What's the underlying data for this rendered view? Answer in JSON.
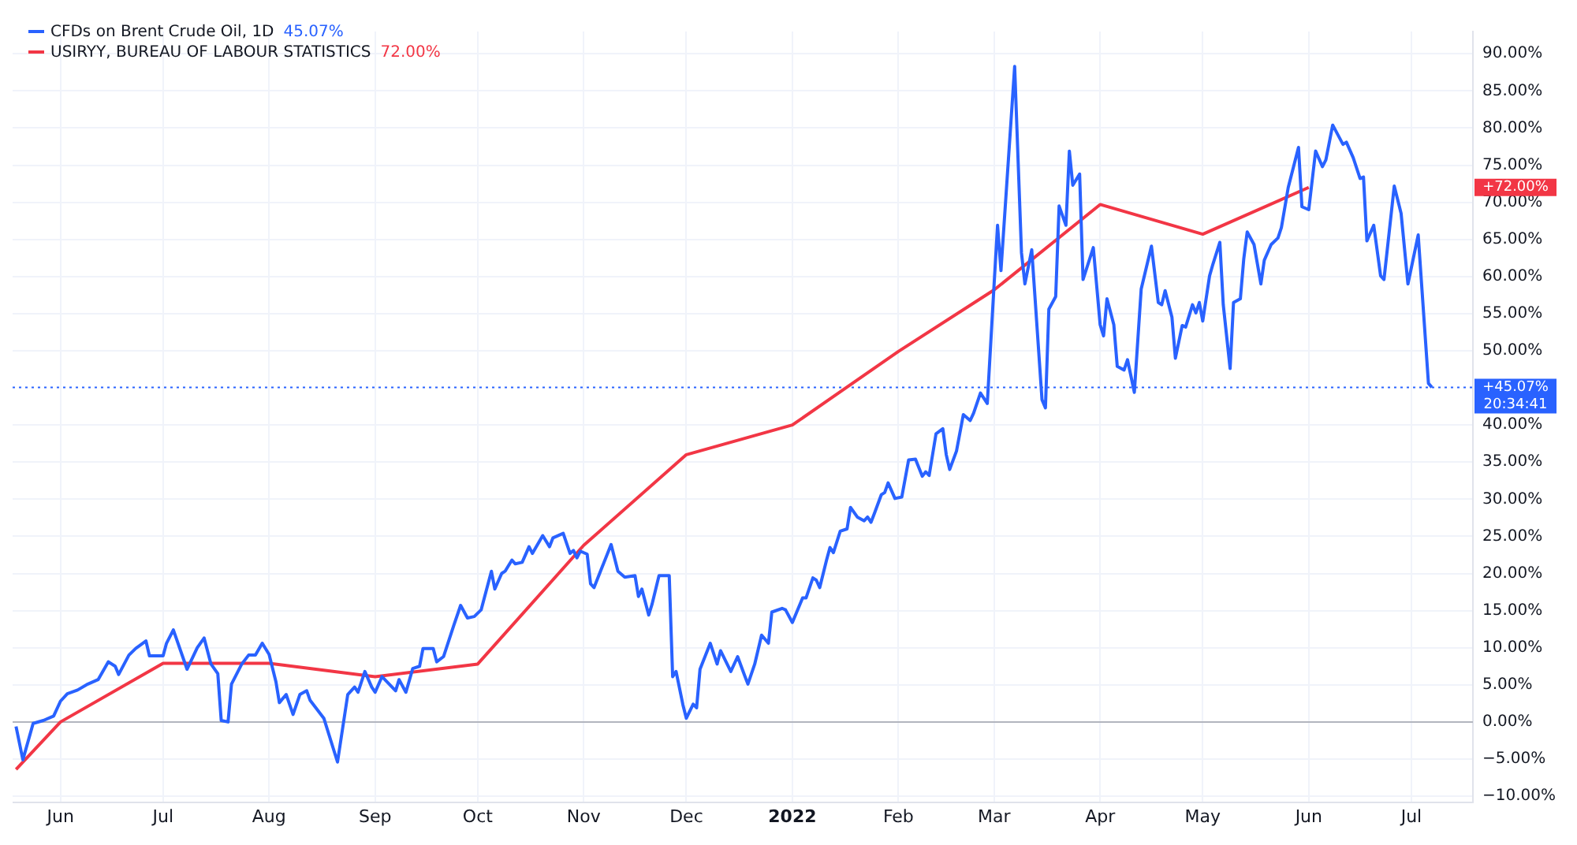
{
  "chart_data": {
    "type": "line",
    "legend": "top left",
    "grid": true,
    "marker": "none",
    "xlim": [
      "2021-05-18",
      "2022-07-19"
    ],
    "xticks": [
      {
        "value": "2021-06-01",
        "label": "Jun"
      },
      {
        "value": "2021-07-01",
        "label": "Jul"
      },
      {
        "value": "2021-08-01",
        "label": "Aug"
      },
      {
        "value": "2021-09-01",
        "label": "Sep"
      },
      {
        "value": "2021-10-01",
        "label": "Oct"
      },
      {
        "value": "2021-11-01",
        "label": "Nov"
      },
      {
        "value": "2021-12-01",
        "label": "Dec"
      },
      {
        "value": "2022-01-01",
        "label": "2022"
      },
      {
        "value": "2022-02-01",
        "label": "Feb"
      },
      {
        "value": "2022-03-01",
        "label": "Mar"
      },
      {
        "value": "2022-04-01",
        "label": "Apr"
      },
      {
        "value": "2022-05-01",
        "label": "May"
      },
      {
        "value": "2022-06-01",
        "label": "Jun"
      },
      {
        "value": "2022-07-01",
        "label": "Jul"
      }
    ],
    "ylim": [
      -10.8,
      93
    ],
    "yticks": [
      {
        "value": -10,
        "label": "−10.00%"
      },
      {
        "value": -5,
        "label": "−5.00%"
      },
      {
        "value": 0,
        "label": "0.00%"
      },
      {
        "value": 5,
        "label": "5.00%"
      },
      {
        "value": 10,
        "label": "10.00%"
      },
      {
        "value": 15,
        "label": "15.00%"
      },
      {
        "value": 20,
        "label": "20.00%"
      },
      {
        "value": 25,
        "label": "25.00%"
      },
      {
        "value": 30,
        "label": "30.00%"
      },
      {
        "value": 35,
        "label": "35.00%"
      },
      {
        "value": 40,
        "label": "40.00%"
      },
      {
        "value": 45,
        "label": null
      },
      {
        "value": 50,
        "label": "50.00%"
      },
      {
        "value": 55,
        "label": "55.00%"
      },
      {
        "value": 60,
        "label": "60.00%"
      },
      {
        "value": 65,
        "label": "65.00%"
      },
      {
        "value": 70,
        "label": "70.00%"
      },
      {
        "value": 75,
        "label": "75.00%"
      },
      {
        "value": 80,
        "label": "80.00%"
      },
      {
        "value": 85,
        "label": "85.00%"
      },
      {
        "value": 90,
        "label": "90.00%"
      }
    ],
    "ref_lines": [
      {
        "axis": "y",
        "value": 0,
        "color": "#b2b5be",
        "line_style": "solid"
      },
      {
        "axis": "y",
        "value": 45.07,
        "color": "#2962ff",
        "line_style": "dotted"
      }
    ],
    "annotations": [
      "+45.07%",
      "+72.00%",
      "45.07%",
      "72.00%",
      "20:34:41"
    ],
    "series": [
      {
        "name": "CFDs on Brent Crude Oil, 1D",
        "color": "#2962ff",
        "x": [
          "2021-05-19",
          "2021-05-21",
          "2021-05-24",
          "2021-05-27",
          "2021-05-30",
          "2021-06-01",
          "2021-06-03",
          "2021-06-06",
          "2021-06-09",
          "2021-06-12",
          "2021-06-15",
          "2021-06-17",
          "2021-06-18",
          "2021-06-21",
          "2021-06-23",
          "2021-06-26",
          "2021-06-27",
          "2021-07-01",
          "2021-07-02",
          "2021-07-04",
          "2021-07-08",
          "2021-07-11",
          "2021-07-13",
          "2021-07-15",
          "2021-07-17",
          "2021-07-18",
          "2021-07-20",
          "2021-07-21",
          "2021-07-24",
          "2021-07-26",
          "2021-07-28",
          "2021-07-30",
          "2021-08-01",
          "2021-08-03",
          "2021-08-04",
          "2021-08-06",
          "2021-08-08",
          "2021-08-10",
          "2021-08-12",
          "2021-08-13",
          "2021-08-17",
          "2021-08-21",
          "2021-08-24",
          "2021-08-26",
          "2021-08-27",
          "2021-08-29",
          "2021-08-31",
          "2021-09-01",
          "2021-09-03",
          "2021-09-07",
          "2021-09-08",
          "2021-09-10",
          "2021-09-12",
          "2021-09-14",
          "2021-09-15",
          "2021-09-18",
          "2021-09-19",
          "2021-09-21",
          "2021-09-24",
          "2021-09-26",
          "2021-09-28",
          "2021-09-30",
          "2021-10-02",
          "2021-10-05",
          "2021-10-06",
          "2021-10-08",
          "2021-10-09",
          "2021-10-11",
          "2021-10-12",
          "2021-10-14",
          "2021-10-16",
          "2021-10-17",
          "2021-10-20",
          "2021-10-22",
          "2021-10-23",
          "2021-10-26",
          "2021-10-28",
          "2021-10-29",
          "2021-10-30",
          "2021-10-31",
          "2021-11-02",
          "2021-11-03",
          "2021-11-04",
          "2021-11-09",
          "2021-11-11",
          "2021-11-13",
          "2021-11-16",
          "2021-11-17",
          "2021-11-18",
          "2021-11-20",
          "2021-11-21",
          "2021-11-23",
          "2021-11-26",
          "2021-11-27",
          "2021-11-28",
          "2021-11-30",
          "2021-12-01",
          "2021-12-03",
          "2021-12-04",
          "2021-12-05",
          "2021-12-08",
          "2021-12-10",
          "2021-12-11",
          "2021-12-14",
          "2021-12-16",
          "2021-12-18",
          "2021-12-19",
          "2021-12-21",
          "2021-12-23",
          "2021-12-25",
          "2021-12-26",
          "2021-12-29",
          "2021-12-30",
          "2022-01-01",
          "2022-01-04",
          "2022-01-05",
          "2022-01-07",
          "2022-01-08",
          "2022-01-09",
          "2022-01-11",
          "2022-01-12",
          "2022-01-13",
          "2022-01-15",
          "2022-01-17",
          "2022-01-18",
          "2022-01-20",
          "2022-01-22",
          "2022-01-23",
          "2022-01-24",
          "2022-01-25",
          "2022-01-27",
          "2022-01-28",
          "2022-01-29",
          "2022-01-31",
          "2022-02-02",
          "2022-02-04",
          "2022-02-06",
          "2022-02-08",
          "2022-02-09",
          "2022-02-10",
          "2022-02-12",
          "2022-02-14",
          "2022-02-15",
          "2022-02-16",
          "2022-02-18",
          "2022-02-20",
          "2022-02-22",
          "2022-02-23",
          "2022-02-25",
          "2022-02-27",
          "2022-03-01",
          "2022-03-02",
          "2022-03-03",
          "2022-03-07",
          "2022-03-09",
          "2022-03-10",
          "2022-03-12",
          "2022-03-15",
          "2022-03-16",
          "2022-03-17",
          "2022-03-19",
          "2022-03-20",
          "2022-03-22",
          "2022-03-23",
          "2022-03-24",
          "2022-03-26",
          "2022-03-27",
          "2022-03-30",
          "2022-04-01",
          "2022-04-02",
          "2022-04-03",
          "2022-04-05",
          "2022-04-06",
          "2022-04-08",
          "2022-04-09",
          "2022-04-11",
          "2022-04-13",
          "2022-04-16",
          "2022-04-18",
          "2022-04-19",
          "2022-04-20",
          "2022-04-22",
          "2022-04-23",
          "2022-04-25",
          "2022-04-26",
          "2022-04-28",
          "2022-04-29",
          "2022-04-30",
          "2022-05-01",
          "2022-05-03",
          "2022-05-04",
          "2022-05-06",
          "2022-05-07",
          "2022-05-09",
          "2022-05-10",
          "2022-05-12",
          "2022-05-13",
          "2022-05-14",
          "2022-05-16",
          "2022-05-18",
          "2022-05-19",
          "2022-05-21",
          "2022-05-23",
          "2022-05-24",
          "2022-05-26",
          "2022-05-29",
          "2022-05-30",
          "2022-06-01",
          "2022-06-03",
          "2022-06-05",
          "2022-06-06",
          "2022-06-08",
          "2022-06-11",
          "2022-06-12",
          "2022-06-14",
          "2022-06-16",
          "2022-06-17",
          "2022-06-18",
          "2022-06-20",
          "2022-06-22",
          "2022-06-23",
          "2022-06-26",
          "2022-06-28",
          "2022-06-30",
          "2022-07-03",
          "2022-07-06",
          "2022-07-07"
        ],
        "values": [
          -0.6,
          -5.1,
          -0.2,
          0.2,
          0.8,
          2.8,
          3.8,
          4.3,
          5.1,
          5.7,
          8.1,
          7.5,
          6.4,
          9.0,
          9.9,
          10.9,
          8.9,
          8.9,
          10.6,
          12.4,
          7.1,
          10.0,
          11.3,
          7.8,
          6.5,
          0.2,
          0,
          5.1,
          7.8,
          9.0,
          9.0,
          10.6,
          9.1,
          5.4,
          2.6,
          3.7,
          1.0,
          3.7,
          4.2,
          2.9,
          0.5,
          -5.4,
          3.7,
          4.7,
          4.0,
          6.8,
          4.7,
          4.0,
          6.1,
          4.2,
          5.7,
          4.0,
          7.2,
          7.5,
          9.9,
          9.9,
          8.1,
          8.8,
          13.0,
          15.7,
          14.0,
          14.2,
          15.1,
          20.3,
          17.9,
          20.0,
          20.3,
          21.8,
          21.3,
          21.5,
          23.6,
          22.7,
          25.1,
          23.6,
          24.8,
          25.4,
          22.7,
          23.1,
          22.1,
          23.0,
          22.6,
          18.6,
          18.1,
          23.9,
          20.3,
          19.5,
          19.7,
          16.9,
          17.9,
          14.4,
          15.9,
          19.7,
          19.7,
          6.1,
          6.8,
          2.3,
          0.5,
          2.4,
          1.9,
          7.1,
          10.6,
          7.8,
          9.6,
          6.8,
          8.8,
          6.3,
          5.1,
          7.8,
          11.7,
          10.6,
          14.8,
          15.3,
          15.1,
          13.4,
          16.7,
          16.7,
          19.4,
          19.1,
          18.1,
          21.8,
          23.5,
          22.8,
          25.7,
          26.0,
          28.9,
          27.6,
          27.1,
          27.6,
          26.9,
          28.1,
          30.6,
          30.9,
          32.2,
          30.1,
          30.3,
          35.3,
          35.4,
          33.1,
          33.7,
          33.2,
          38.8,
          39.5,
          36.0,
          34.0,
          36.5,
          41.4,
          40.6,
          41.6,
          44.3,
          42.9,
          59.0,
          66.9,
          60.8,
          88.3,
          63.2,
          59.0,
          63.6,
          43.4,
          42.3,
          55.6,
          57.3,
          69.5,
          66.9,
          76.9,
          72.3,
          73.8,
          59.6,
          63.9,
          53.5,
          52.0,
          57.0,
          53.5,
          47.9,
          47.4,
          48.8,
          44.4,
          58.3,
          64.1,
          56.5,
          56.2,
          58.1,
          54.5,
          49.0,
          53.4,
          53.2,
          56.2,
          55.1,
          56.5,
          54.0,
          60.1,
          61.7,
          64.6,
          56.2,
          47.6,
          56.5,
          57.0,
          62.4,
          66.0,
          64.3,
          59.0,
          62.2,
          64.3,
          65.2,
          66.6,
          72.0,
          77.4,
          69.4,
          69.0,
          76.9,
          74.8,
          75.7,
          80.4,
          77.8,
          78.1,
          76.0,
          73.2,
          73.4,
          64.8,
          66.9,
          60.1,
          59.6,
          72.2,
          68.5,
          59.0,
          65.6,
          45.6,
          45.07
        ]
      },
      {
        "name": "USIRYY, BUREAU OF LABOUR STATISTICS",
        "color": "#f23645",
        "x": [
          "2021-05-19",
          "2021-06-01",
          "2021-07-01",
          "2021-08-01",
          "2021-09-01",
          "2021-10-01",
          "2021-11-01",
          "2021-12-01",
          "2022-01-01",
          "2022-02-01",
          "2022-03-01",
          "2022-04-01",
          "2022-05-01",
          "2022-06-01"
        ],
        "values": [
          -6.4,
          0,
          7.9,
          7.9,
          6.1,
          7.8,
          23.8,
          36.0,
          40.0,
          49.9,
          58.2,
          69.7,
          65.7,
          72.0
        ]
      }
    ]
  }
}
